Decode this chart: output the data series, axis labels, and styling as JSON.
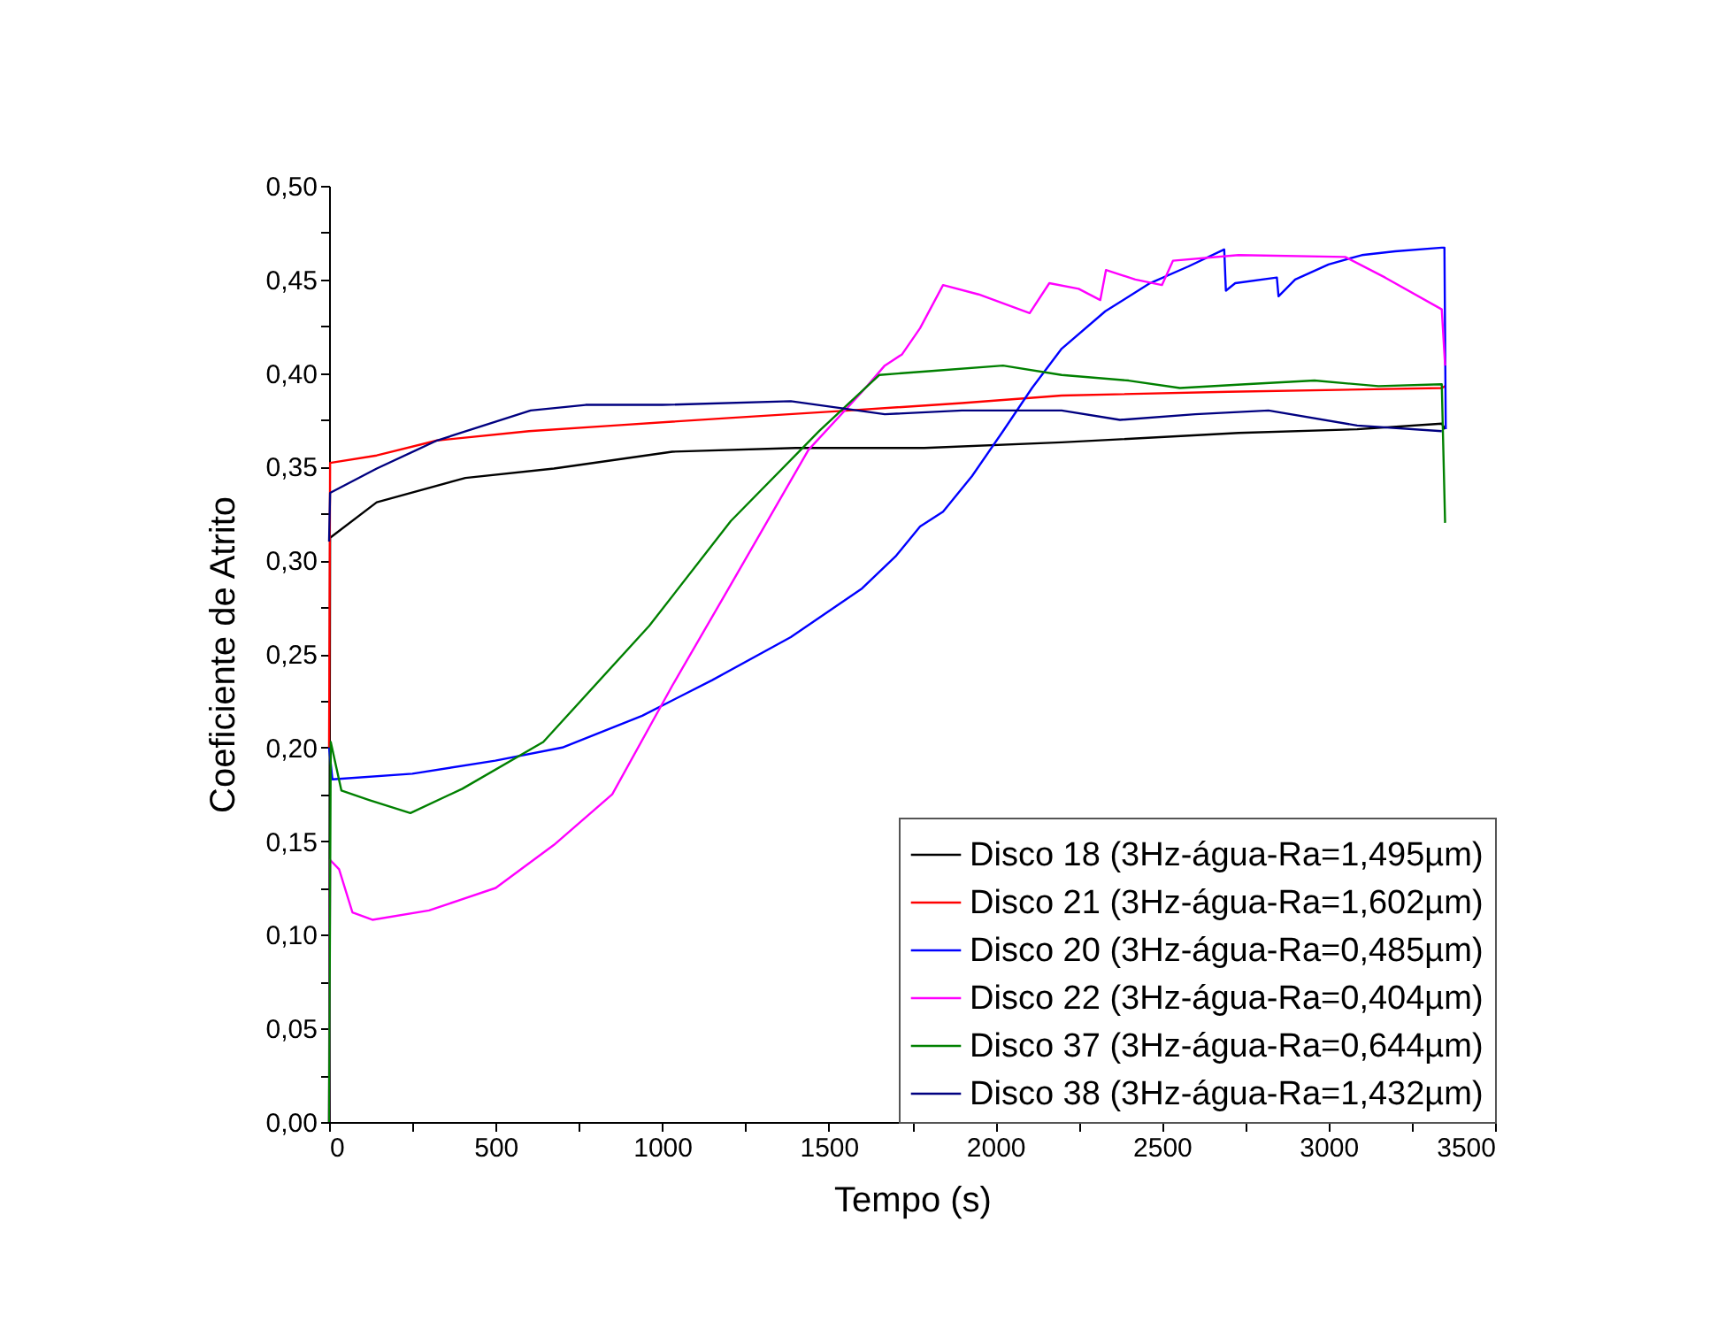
{
  "chart_data": {
    "type": "line",
    "xlabel": "Tempo (s)",
    "ylabel": "Coeficiente de Atrito",
    "xlim": [
      0,
      3500
    ],
    "ylim": [
      0,
      0.5
    ],
    "xticks": [
      0,
      {
        "value": 250,
        "label": null
      },
      500,
      {
        "value": 750,
        "label": null
      },
      1000,
      {
        "value": 1250,
        "label": null
      },
      1500,
      {
        "value": 1750,
        "label": null
      },
      2000,
      {
        "value": 2250,
        "label": null
      },
      2500,
      {
        "value": 2750,
        "label": null
      },
      3000,
      {
        "value": 3250,
        "label": null
      },
      3500
    ],
    "yticks": [
      {
        "value": 0,
        "label": "0,00"
      },
      {
        "value": 0.025,
        "label": null
      },
      {
        "value": 0.05,
        "label": "0,05"
      },
      {
        "value": 0.075,
        "label": null
      },
      {
        "value": 0.1,
        "label": "0,10"
      },
      {
        "value": 0.125,
        "label": null
      },
      {
        "value": 0.15,
        "label": "0,15"
      },
      {
        "value": 0.175,
        "label": null
      },
      {
        "value": 0.2,
        "label": "0,20"
      },
      {
        "value": 0.225,
        "label": null
      },
      {
        "value": 0.25,
        "label": "0,25"
      },
      {
        "value": 0.275,
        "label": null
      },
      {
        "value": 0.3,
        "label": "0,30"
      },
      {
        "value": 0.325,
        "label": null
      },
      {
        "value": 0.35,
        "label": "0,35"
      },
      {
        "value": 0.375,
        "label": null
      },
      {
        "value": 0.4,
        "label": "0,40"
      },
      {
        "value": 0.425,
        "label": null
      },
      {
        "value": 0.45,
        "label": "0,45"
      },
      {
        "value": 0.475,
        "label": null
      },
      {
        "value": 0.5,
        "label": "0,50"
      }
    ],
    "grid": false,
    "legend": "bottom right",
    "line_style": "solid",
    "marker": "none",
    "series": [
      {
        "name": "Disco 18 (3Hz-água-Ra=1,495µm)",
        "color": "#000000",
        "x": [
          0,
          3,
          143,
          409,
          675,
          1030,
          1400,
          1786,
          2199,
          2730,
          3086,
          3340,
          3350
        ],
        "values": [
          0.0,
          0.312,
          0.331,
          0.344,
          0.349,
          0.358,
          0.36,
          0.36,
          0.363,
          0.368,
          0.37,
          0.373,
          0.37
        ]
      },
      {
        "name": "Disco 21 (3Hz-água-Ra=1,602µm)",
        "color": "#ff0000",
        "x": [
          0,
          3,
          143,
          324,
          600,
          855,
          1200,
          1561,
          1900,
          2199,
          2700,
          3340,
          3350
        ],
        "values": [
          0.2,
          0.352,
          0.356,
          0.364,
          0.369,
          0.372,
          0.376,
          0.38,
          0.384,
          0.388,
          0.39,
          0.392,
          0.393
        ]
      },
      {
        "name": "Disco 20 (3Hz-água-Ra=0,485µm)",
        "color": "#0000ff",
        "x": [
          0,
          10,
          250,
          499,
          700,
          940,
          1150,
          1386,
          1600,
          1700,
          1774,
          1843,
          1930,
          2023,
          2110,
          2199,
          2330,
          2464,
          2580,
          2687,
          2692,
          2720,
          2845,
          2850,
          2900,
          3000,
          3100,
          3200,
          3340,
          3348,
          3352
        ],
        "values": [
          0.2,
          0.183,
          0.186,
          0.193,
          0.2,
          0.217,
          0.236,
          0.259,
          0.285,
          0.302,
          0.318,
          0.326,
          0.345,
          0.369,
          0.392,
          0.413,
          0.433,
          0.448,
          0.457,
          0.466,
          0.444,
          0.448,
          0.451,
          0.441,
          0.45,
          0.458,
          0.463,
          0.465,
          0.467,
          0.467,
          0.37
        ]
      },
      {
        "name": "Disco 22 (3Hz-água-Ra=0,404µm)",
        "color": "#ff00ff",
        "x": [
          0,
          3,
          30,
          70,
          130,
          300,
          500,
          675,
          850,
          1030,
          1206,
          1439,
          1600,
          1668,
          1720,
          1774,
          1843,
          1950,
          2103,
          2162,
          2250,
          2315,
          2332,
          2420,
          2500,
          2533,
          2730,
          3050,
          3170,
          3340,
          3350
        ],
        "values": [
          0.0,
          0.14,
          0.135,
          0.112,
          0.108,
          0.113,
          0.125,
          0.148,
          0.175,
          0.233,
          0.287,
          0.359,
          0.39,
          0.404,
          0.41,
          0.424,
          0.447,
          0.442,
          0.432,
          0.448,
          0.445,
          0.439,
          0.455,
          0.45,
          0.447,
          0.46,
          0.463,
          0.462,
          0.451,
          0.434,
          0.404
        ]
      },
      {
        "name": "Disco 37 (3Hz-água-Ra=0,644µm)",
        "color": "#008000",
        "x": [
          0,
          5,
          37,
          120,
          244,
          400,
          643,
          961,
          1206,
          1471,
          1652,
          1800,
          2023,
          2199,
          2400,
          2554,
          2750,
          2958,
          3150,
          3340,
          3350
        ],
        "values": [
          0.0,
          0.203,
          0.177,
          0.172,
          0.165,
          0.178,
          0.203,
          0.265,
          0.321,
          0.369,
          0.399,
          0.401,
          0.404,
          0.399,
          0.396,
          0.392,
          0.394,
          0.396,
          0.393,
          0.394,
          0.32
        ]
      },
      {
        "name": "Disco 38 (3Hz-água-Ra=1,432µm)",
        "color": "#000080",
        "x": [
          0,
          3,
          143,
          324,
          605,
          770,
          1000,
          1386,
          1668,
          1900,
          2199,
          2374,
          2600,
          2820,
          3086,
          3340
        ],
        "values": [
          0.31,
          0.336,
          0.349,
          0.364,
          0.38,
          0.383,
          0.383,
          0.385,
          0.378,
          0.38,
          0.38,
          0.375,
          0.378,
          0.38,
          0.372,
          0.369
        ]
      }
    ]
  }
}
